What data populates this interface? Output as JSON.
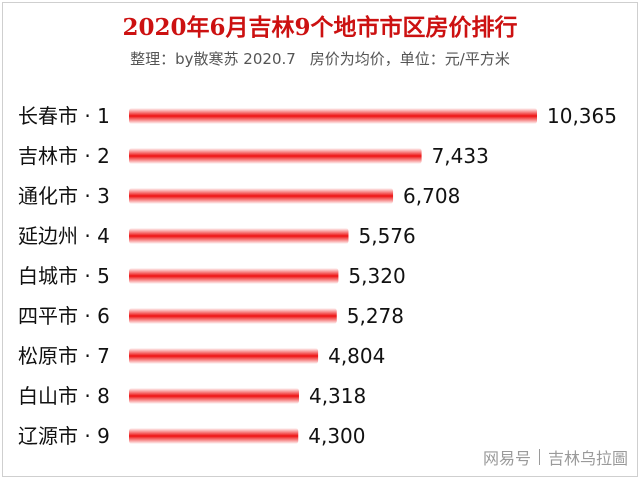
{
  "title": "2020年6月吉林9个地市市区房价排行",
  "subtitle_left": "整理：by散寒苏  2020.7",
  "subtitle_right": "房价为均价，单位：元/平方米",
  "watermark": {
    "platform": "网易号",
    "author": "吉林乌拉圖"
  },
  "colors": {
    "bar": "#ee1111",
    "title": "#cc1111"
  },
  "chart_data": {
    "type": "bar",
    "orientation": "horizontal",
    "title": "2020年6月吉林9个地市市区房价排行",
    "xlabel": "",
    "ylabel": "",
    "unit": "元/平方米",
    "categories": [
      "长春市 · 1",
      "吉林市 · 2",
      "通化市 · 3",
      "延边州 · 4",
      "白城市 · 5",
      "四平市 · 6",
      "松原市 · 7",
      "白山市 · 8",
      "辽源市 · 9"
    ],
    "values": [
      10365,
      7433,
      6708,
      5576,
      5320,
      5278,
      4804,
      4318,
      4300
    ],
    "value_labels": [
      "10,365",
      "7,433",
      "6,708",
      "5,576",
      "5,320",
      "5,278",
      "4,804",
      "4,318",
      "4,300"
    ],
    "xlim": [
      0,
      10365
    ],
    "grid": false,
    "legend": "none"
  }
}
